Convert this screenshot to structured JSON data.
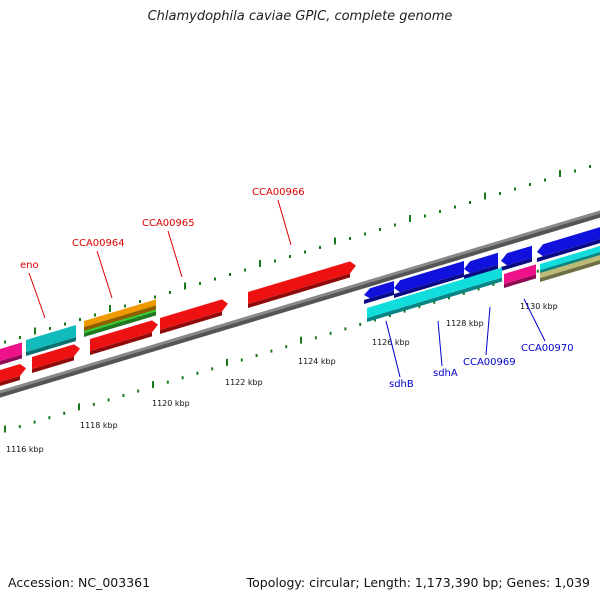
{
  "title": "Chlamydophila caviae GPIC, complete genome",
  "footer": {
    "accession": "Accession: NC_003361",
    "summary": "Topology: circular; Length: 1,173,390 bp; Genes: 1,039"
  },
  "ticks": [
    "1116 kbp",
    "1118 kbp",
    "1120 kbp",
    "1122 kbp",
    "1124 kbp",
    "1126 kbp",
    "1128 kbp",
    "1130 kbp"
  ],
  "gene_labels": {
    "forward": [
      "eno",
      "CCA00964",
      "CCA00965",
      "CCA00966"
    ],
    "reverse": [
      "sdhB",
      "sdhA",
      "CCA00969",
      "CCA00970"
    ]
  },
  "colors": {
    "forward_label": "#dd0000",
    "reverse_label": "#0000cc",
    "red_cds": "#ee1111",
    "blue_cds": "#1111dd",
    "cyan_feature": "#11dddd",
    "teal_feature": "#11bbbb",
    "magenta_feature": "#ee1188",
    "orange_feature": "#ee9900",
    "green_feature": "#33cc33",
    "tan_feature": "#bbbb77",
    "backbone": "#888888",
    "tick": "#1a7a1a"
  }
}
